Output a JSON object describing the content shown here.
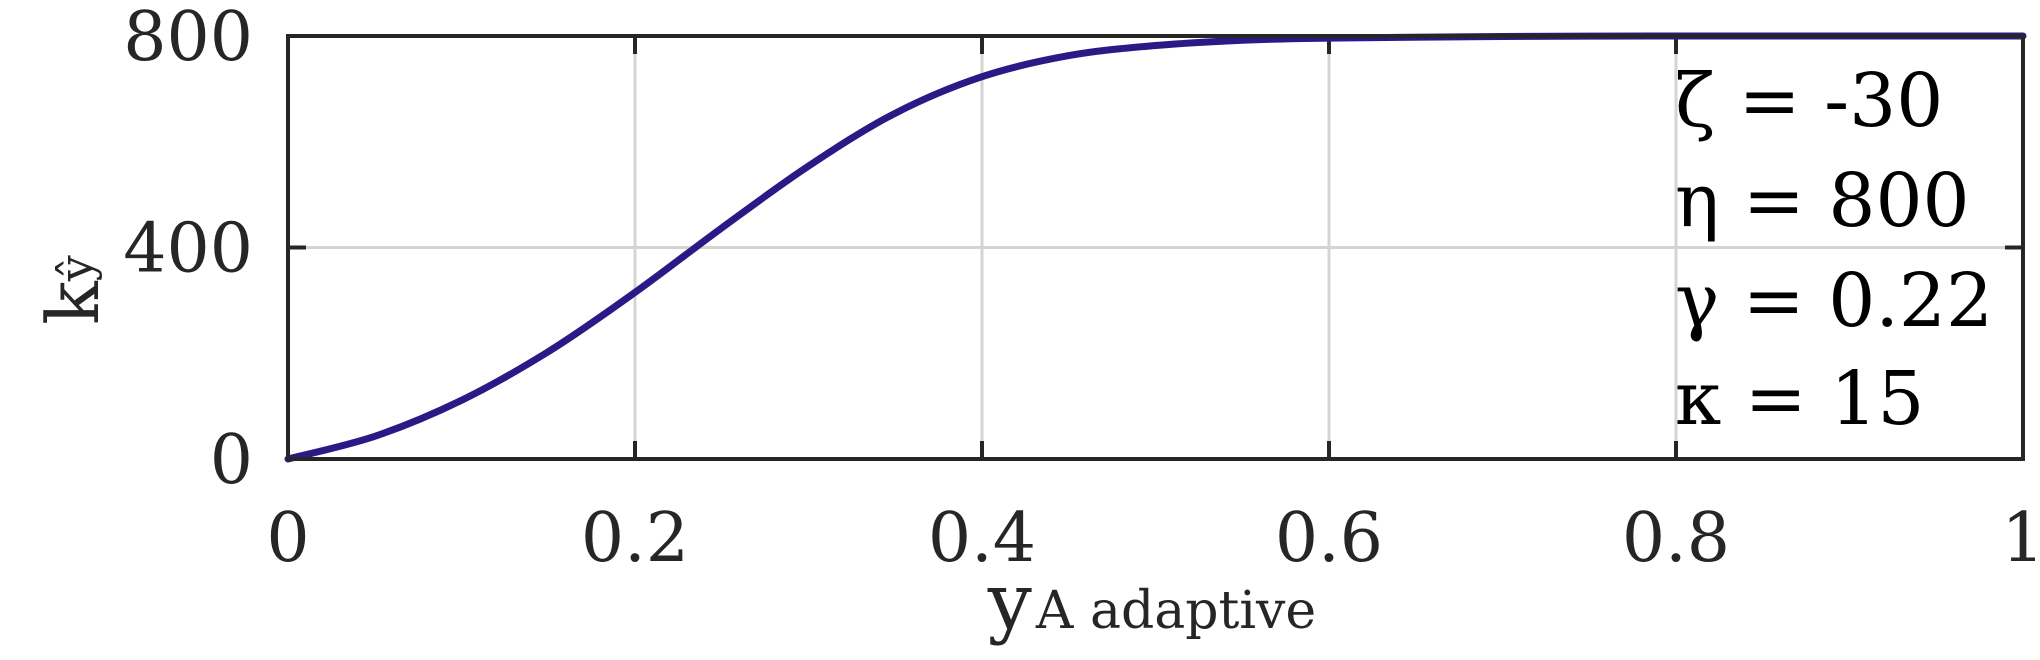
{
  "chart_data": {
    "type": "line",
    "xlabel": "y",
    "xlabel_sub": "A adaptive",
    "ylabel": "k",
    "ylabel_sub": "ŷ",
    "xlim": [
      0,
      1
    ],
    "ylim": [
      0,
      800
    ],
    "x_ticks": [
      "0",
      "0.2",
      "0.4",
      "0.6",
      "0.8",
      "1"
    ],
    "y_ticks": [
      "0",
      "400",
      "800"
    ],
    "grid": true,
    "series": [
      {
        "color": "#2b1a86",
        "x": [
          0,
          0.05,
          0.1,
          0.15,
          0.2,
          0.25,
          0.3,
          0.35,
          0.4,
          0.45,
          0.5,
          0.55,
          0.6,
          0.7,
          0.8,
          0.9,
          1.0
        ],
        "y": [
          0,
          43,
          111,
          203,
          315,
          437,
          554,
          654,
          723,
          763,
          782,
          792,
          796,
          799,
          800,
          800,
          800
        ]
      }
    ],
    "annotations": [
      "ζ = -30",
      "η = 800",
      "γ = 0.22",
      "κ = 15"
    ]
  }
}
